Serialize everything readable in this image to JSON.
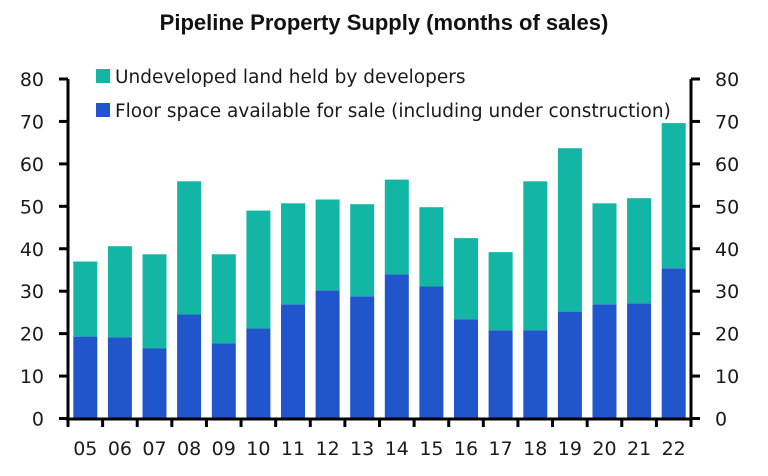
{
  "chart_data": {
    "type": "bar",
    "stacked": true,
    "title": "Pipeline Property Supply (months of sales)",
    "xlabel": "",
    "ylabel": "",
    "ylim": [
      0,
      80
    ],
    "yticks": [
      0,
      10,
      20,
      30,
      40,
      50,
      60,
      70,
      80
    ],
    "y_axis_both_sides": true,
    "grid": false,
    "legend_position": "top-left",
    "categories": [
      "05",
      "06",
      "07",
      "08",
      "09",
      "10",
      "11",
      "12",
      "13",
      "14",
      "15",
      "16",
      "17",
      "18",
      "19",
      "20",
      "21",
      "22"
    ],
    "series": [
      {
        "name": "Floor space available for sale (including under construction)",
        "color": "#2155CC",
        "values": [
          19.3,
          19.1,
          16.5,
          24.5,
          17.7,
          21.2,
          26.9,
          30.2,
          28.8,
          34.0,
          31.1,
          23.4,
          20.8,
          20.8,
          25.2,
          26.9,
          27.1,
          35.4
        ]
      },
      {
        "name": "Undeveloped land held by developers",
        "color": "#13B5A5",
        "values": [
          17.7,
          21.5,
          22.2,
          31.4,
          21.0,
          27.8,
          23.8,
          21.4,
          21.7,
          22.3,
          18.7,
          19.1,
          18.4,
          35.1,
          38.5,
          23.8,
          24.8,
          34.2
        ]
      }
    ],
    "totals": [
      37.0,
      40.6,
      38.7,
      55.9,
      38.7,
      49.0,
      50.7,
      51.6,
      50.5,
      56.3,
      49.8,
      42.5,
      39.2,
      55.9,
      63.7,
      50.7,
      51.9,
      69.6
    ],
    "legend": [
      {
        "label": "Undeveloped land held by developers",
        "color": "#13B5A5"
      },
      {
        "label": "Floor space available for sale (including under construction)",
        "color": "#2155CC"
      }
    ]
  }
}
